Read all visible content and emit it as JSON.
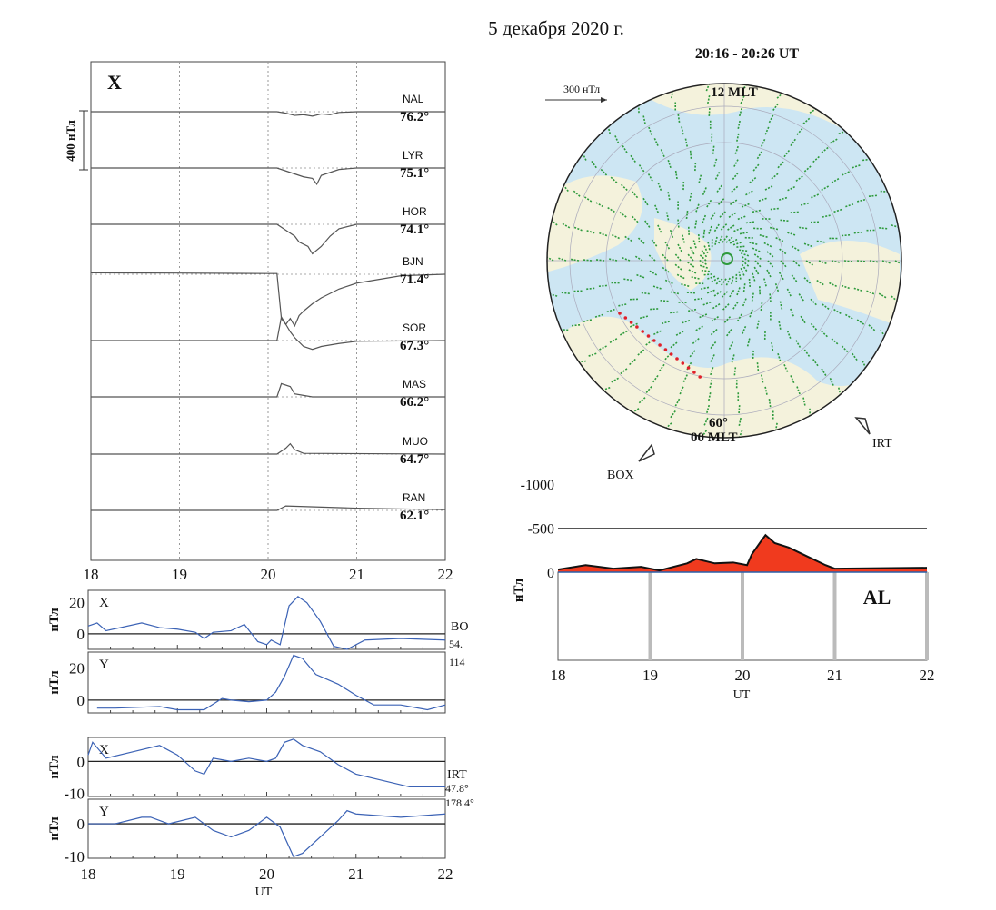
{
  "title": "5 декабря 2020 г.",
  "chart_data": [
    {
      "type": "line",
      "component": "X",
      "xlim": [
        18,
        22
      ],
      "x_ticks": [
        18,
        19,
        20,
        21,
        22
      ],
      "scale_bar": "400 нТл",
      "stations": [
        {
          "name": "NAL",
          "lat": "76.2°",
          "x": [
            18,
            19,
            20,
            20.1,
            20.2,
            20.3,
            20.4,
            20.5,
            20.6,
            20.7,
            20.8,
            21,
            22
          ],
          "y": [
            0,
            0,
            0,
            0,
            -10,
            -25,
            -20,
            -30,
            -15,
            -20,
            -5,
            0,
            0
          ]
        },
        {
          "name": "LYR",
          "lat": "75.1°",
          "x": [
            18,
            19,
            20,
            20.1,
            20.2,
            20.3,
            20.4,
            20.5,
            20.55,
            20.6,
            20.7,
            20.8,
            21,
            22
          ],
          "y": [
            0,
            0,
            0,
            0,
            -20,
            -40,
            -60,
            -70,
            -110,
            -50,
            -30,
            -10,
            0,
            0
          ]
        },
        {
          "name": "HOR",
          "lat": "74.1°",
          "x": [
            18,
            19,
            20,
            20.1,
            20.2,
            20.3,
            20.35,
            20.45,
            20.5,
            20.6,
            20.7,
            20.8,
            21,
            22
          ],
          "y": [
            0,
            0,
            0,
            0,
            -40,
            -80,
            -120,
            -150,
            -200,
            -150,
            -80,
            -30,
            0,
            0
          ]
        },
        {
          "name": "BJN",
          "lat": "71.4°",
          "x": [
            18,
            19,
            20,
            20.1,
            20.15,
            20.2,
            20.25,
            20.3,
            20.35,
            20.4,
            20.5,
            20.6,
            20.8,
            21,
            21.5,
            22
          ],
          "y": [
            10,
            8,
            5,
            5,
            -300,
            -340,
            -300,
            -350,
            -280,
            -250,
            -200,
            -160,
            -100,
            -60,
            -10,
            0
          ]
        },
        {
          "name": "SOR",
          "lat": "67.3°",
          "x": [
            18,
            20,
            20.1,
            20.15,
            20.2,
            20.25,
            20.3,
            20.4,
            20.5,
            20.6,
            20.8,
            21,
            22
          ],
          "y": [
            0,
            0,
            0,
            160,
            110,
            60,
            20,
            -40,
            -60,
            -40,
            -20,
            -5,
            0
          ]
        },
        {
          "name": "MAS",
          "lat": "66.2°",
          "x": [
            18,
            20,
            20.1,
            20.15,
            20.25,
            20.3,
            20.4,
            20.5,
            21,
            22
          ],
          "y": [
            0,
            0,
            0,
            90,
            70,
            20,
            10,
            0,
            0,
            0
          ]
        },
        {
          "name": "MUO",
          "lat": "64.7°",
          "x": [
            18,
            20.1,
            20.2,
            20.25,
            20.3,
            20.4,
            22
          ],
          "y": [
            0,
            0,
            40,
            70,
            30,
            5,
            0
          ]
        },
        {
          "name": "RAN",
          "lat": "62.1°",
          "x": [
            18,
            20.1,
            20.2,
            21,
            22
          ],
          "y": [
            0,
            0,
            30,
            15,
            5
          ]
        }
      ]
    },
    {
      "type": "line",
      "station": "BO",
      "coords": [
        "54.",
        "114"
      ],
      "ylabel": "нТл",
      "panels": [
        {
          "component": "X",
          "ylim": [
            -10,
            28
          ],
          "y_ticks": [
            0,
            20
          ],
          "x": [
            18,
            18.1,
            18.2,
            18.6,
            18.8,
            19,
            19.2,
            19.3,
            19.4,
            19.6,
            19.75,
            19.9,
            20,
            20.05,
            20.15,
            20.25,
            20.35,
            20.45,
            20.6,
            20.75,
            20.9,
            21.1,
            21.5,
            22
          ],
          "y": [
            5,
            7,
            2,
            7,
            4,
            3,
            1,
            -3,
            1,
            2,
            6,
            -5,
            -7,
            -4,
            -7,
            18,
            24,
            20,
            8,
            -8,
            -10,
            -4,
            -3,
            -4
          ]
        },
        {
          "component": "Y",
          "ylim": [
            -8,
            30
          ],
          "y_ticks": [
            0,
            20
          ],
          "x": [
            18.1,
            18.3,
            18.8,
            19,
            19.3,
            19.5,
            19.6,
            19.8,
            20,
            20.1,
            20.2,
            20.3,
            20.4,
            20.55,
            20.8,
            21,
            21.2,
            21.5,
            21.8,
            22
          ],
          "y": [
            -5,
            -5,
            -4,
            -6,
            -6,
            1,
            0,
            -1,
            0,
            5,
            15,
            28,
            26,
            16,
            10,
            3,
            -3,
            -3,
            -6,
            -3
          ]
        }
      ]
    },
    {
      "type": "line",
      "station": "IRT",
      "coords": [
        "47.8°",
        "178.4°"
      ],
      "ylabel": "нТл",
      "xlabel": "UT",
      "x_ticks": [
        18,
        19,
        20,
        21,
        22
      ],
      "panels": [
        {
          "component": "X",
          "ylim": [
            -11,
            7.5
          ],
          "y_ticks": [
            0,
            -10
          ],
          "x": [
            18,
            18.05,
            18.2,
            18.5,
            18.8,
            19,
            19.2,
            19.3,
            19.4,
            19.6,
            19.8,
            20,
            20.1,
            20.2,
            20.3,
            20.4,
            20.6,
            20.8,
            21,
            21.3,
            21.6,
            22
          ],
          "y": [
            2,
            6,
            1,
            3,
            5,
            2,
            -3,
            -4,
            1,
            0,
            1,
            0,
            1,
            6,
            7,
            5,
            3,
            -1,
            -4,
            -6,
            -8,
            -8
          ]
        },
        {
          "component": "Y",
          "ylim": [
            -10.5,
            7.5
          ],
          "y_ticks": [
            0,
            -10
          ],
          "x": [
            18,
            18.3,
            18.6,
            18.7,
            18.9,
            19.2,
            19.4,
            19.6,
            19.8,
            20,
            20.15,
            20.3,
            20.4,
            20.6,
            20.8,
            20.9,
            21,
            21.5,
            22
          ],
          "y": [
            0,
            0,
            2,
            2,
            0,
            2,
            -2,
            -4,
            -2,
            2,
            -1,
            -10,
            -9,
            -4,
            1,
            4,
            3,
            2,
            3
          ]
        }
      ]
    },
    {
      "type": "area",
      "title": "AL",
      "ylabel": "нТл",
      "xlabel": "UT",
      "ylim": [
        -1000,
        0
      ],
      "y_ticks": [
        0,
        -500,
        -1000
      ],
      "x_ticks": [
        18,
        19,
        20,
        21,
        22
      ],
      "fill_color": "#f03a1e",
      "x": [
        18,
        18.3,
        18.6,
        18.9,
        19.1,
        19.4,
        19.5,
        19.7,
        19.9,
        20.05,
        20.1,
        20.2,
        20.25,
        20.35,
        20.5,
        20.7,
        20.9,
        21,
        22
      ],
      "y": [
        -30,
        -80,
        -40,
        -60,
        -20,
        -100,
        -150,
        -100,
        -110,
        -80,
        -200,
        -350,
        -420,
        -330,
        -280,
        -180,
        -80,
        -40,
        -50
      ]
    }
  ],
  "map": {
    "time": "20:16 - 20:26 UT",
    "noon": "12 MLT",
    "midnight": "00 MLT",
    "lat": "60°",
    "scale": "300 нТл",
    "stations": [
      "BOX",
      "IRT"
    ],
    "vector_color": "#2e9a3c",
    "boundary_color": "#e0202a"
  }
}
